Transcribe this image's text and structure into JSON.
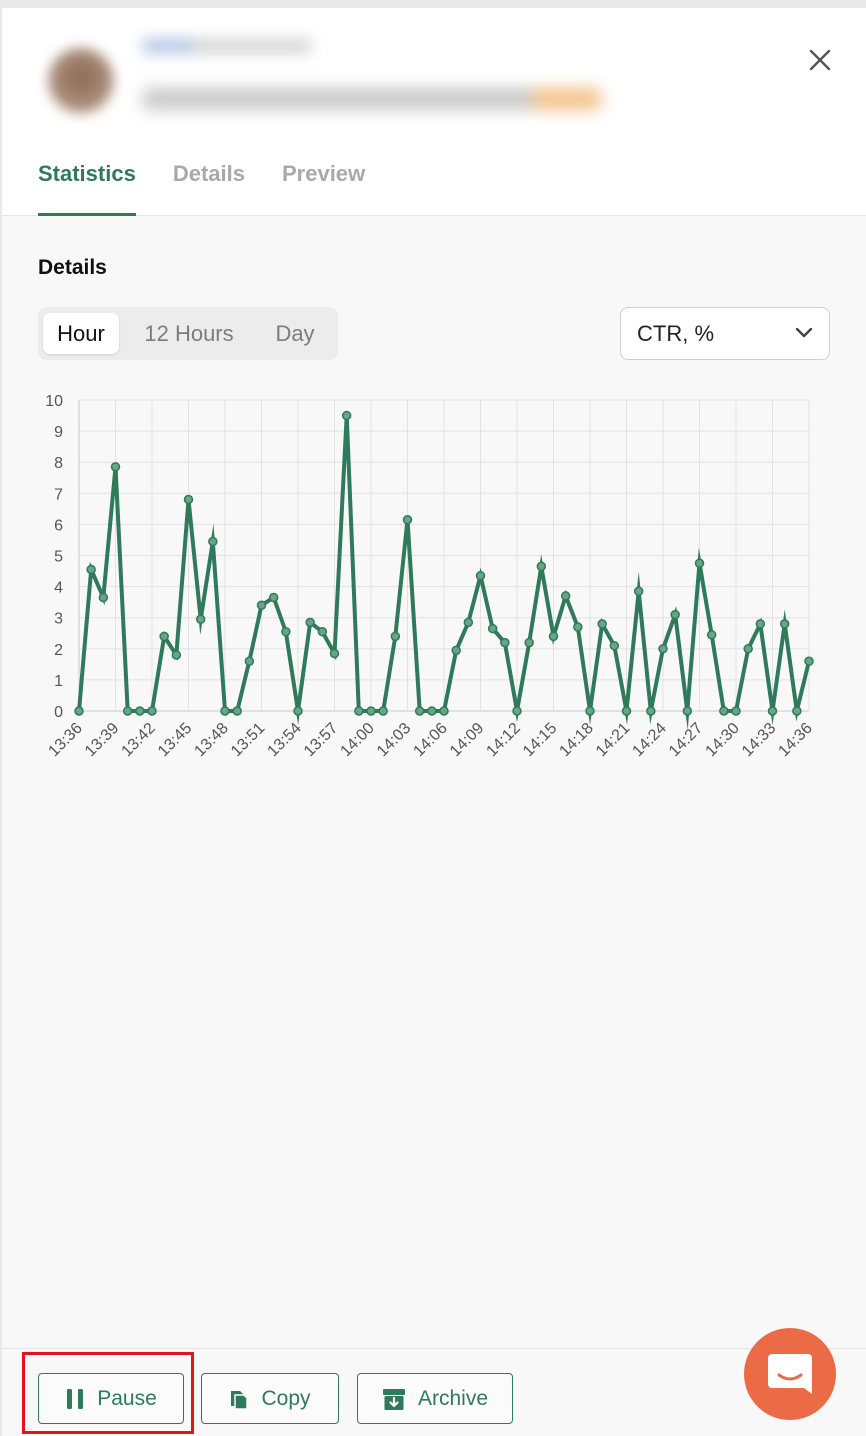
{
  "tabs": [
    {
      "label": "Statistics",
      "active": true
    },
    {
      "label": "Details",
      "active": false
    },
    {
      "label": "Preview",
      "active": false
    }
  ],
  "section_title": "Details",
  "period_selector": {
    "options": [
      "Hour",
      "12 Hours",
      "Day"
    ],
    "selected": "Hour"
  },
  "metric_select": {
    "value": "CTR, %"
  },
  "chart_data": {
    "type": "line",
    "x_tick_labels": [
      "13:36",
      "13:39",
      "13:42",
      "13:45",
      "13:48",
      "13:51",
      "13:54",
      "13:57",
      "14:00",
      "14:03",
      "14:06",
      "14:09",
      "14:12",
      "14:15",
      "14:18",
      "14:21",
      "14:24",
      "14:27",
      "14:30",
      "14:33",
      "14:36"
    ],
    "y_tick_labels": [
      "0",
      "1",
      "2",
      "3",
      "4",
      "5",
      "6",
      "7",
      "8",
      "9",
      "10"
    ],
    "ylim": [
      0,
      10
    ],
    "grid": true,
    "series_color": "#2f7a5a",
    "values": [
      0,
      4.55,
      3.65,
      7.85,
      0,
      0,
      0,
      2.4,
      1.8,
      6.8,
      2.95,
      5.45,
      0,
      0,
      1.6,
      3.4,
      3.65,
      2.55,
      0,
      2.85,
      2.55,
      1.85,
      9.5,
      0,
      0,
      0,
      2.4,
      6.15,
      0,
      0,
      0,
      1.95,
      2.85,
      4.35,
      2.65,
      2.2,
      0,
      2.2,
      4.65,
      2.4,
      3.7,
      2.7,
      0,
      2.8,
      2.1,
      0,
      3.85,
      0,
      2.0,
      3.1,
      0,
      4.75,
      2.45,
      0,
      0,
      2.0,
      2.8,
      0,
      2.8,
      0,
      1.6
    ]
  },
  "footer": {
    "pause_label": "Pause",
    "copy_label": "Copy",
    "archive_label": "Archive"
  },
  "colors": {
    "accent": "#2f7a5a",
    "chat_button": "#ec6b47",
    "highlight": "#e0161e"
  }
}
